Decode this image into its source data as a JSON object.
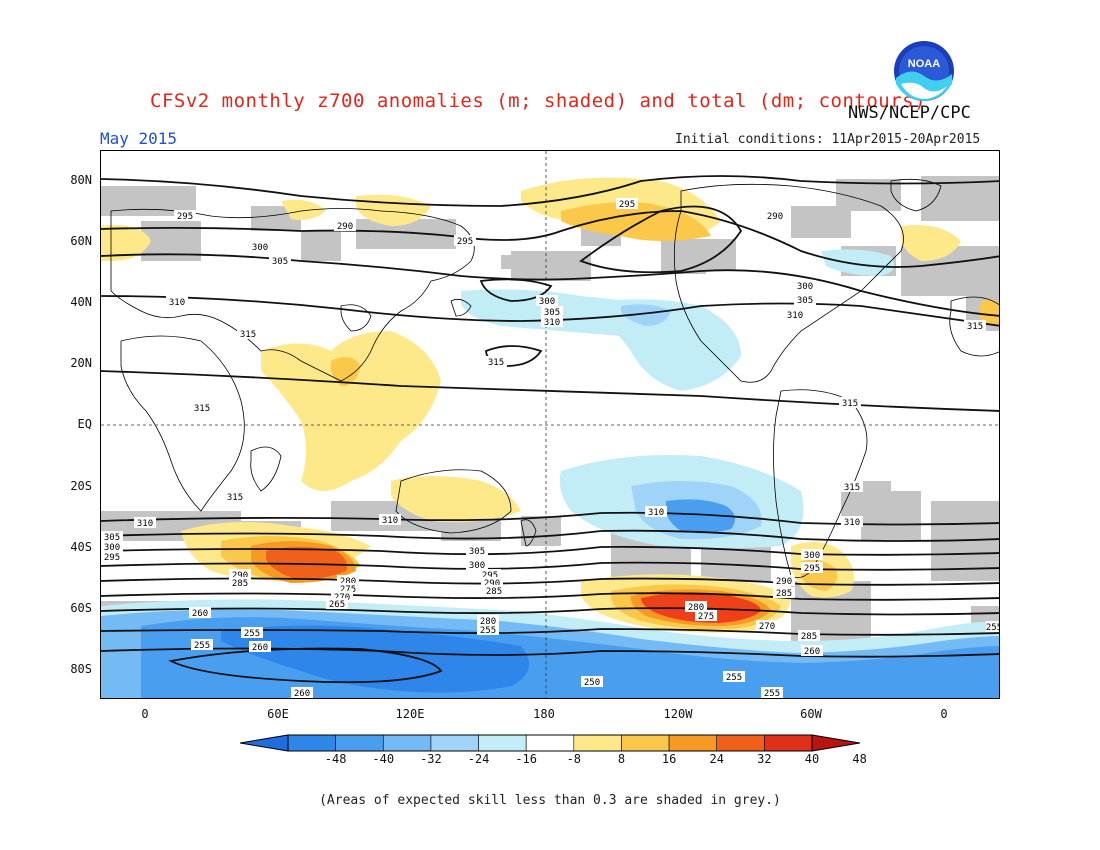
{
  "header": {
    "title": "CFSv2 monthly z700 anomalies (m; shaded) and total (dm; contours)",
    "agency": "NWS/NCEP/CPC",
    "month": "May 2015",
    "initial_conditions": "Initial conditions: 11Apr2015-20Apr2015",
    "logo_text": "NOAA"
  },
  "axes": {
    "latitude_labels": [
      "80N",
      "60N",
      "40N",
      "20N",
      "EQ",
      "20S",
      "40S",
      "60S",
      "80S"
    ],
    "longitude_labels": [
      "0",
      "60E",
      "120E",
      "180",
      "120W",
      "60W",
      "0"
    ]
  },
  "colorbar": {
    "ticks": [
      "-48",
      "-40",
      "-32",
      "-24",
      "-16",
      "-8",
      "8",
      "16",
      "24",
      "32",
      "40",
      "48"
    ],
    "colors": [
      "#1e6ee0",
      "#2e86ea",
      "#4a9ef0",
      "#74baf5",
      "#9fd3f8",
      "#c2edf6",
      "#ffffff",
      "#fde98a",
      "#fbc84a",
      "#f79a24",
      "#f0601a",
      "#e0301a",
      "#b81410"
    ]
  },
  "contour_labels": [
    "295",
    "290",
    "300",
    "305",
    "310",
    "315",
    "280",
    "275",
    "270",
    "265",
    "260",
    "255",
    "250",
    "285"
  ],
  "footnote": "(Areas of expected skill less than 0.3 are shaded in grey.)",
  "shading_colors": {
    "positive_light": "#fde98a",
    "positive_mid": "#fbc84a",
    "positive_strong": "#f79a24",
    "positive_max": "#f0401a",
    "negative_light": "#c2edf6",
    "negative_mid": "#74baf5",
    "negative_strong": "#2e86ea",
    "low_skill_grey": "#c4c4c4"
  }
}
